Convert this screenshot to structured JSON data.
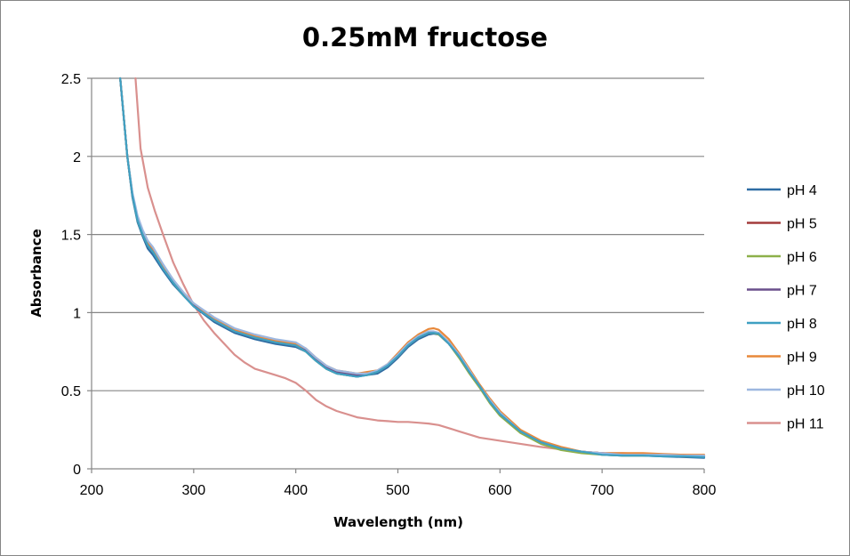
{
  "chart_data": {
    "type": "line",
    "title": "0.25mM fructose",
    "xlabel": "Wavelength (nm)",
    "ylabel": "Absorbance",
    "xlim": [
      200,
      800
    ],
    "ylim": [
      0,
      2.5
    ],
    "xticks": [
      200,
      300,
      400,
      500,
      600,
      700,
      800
    ],
    "yticks": [
      0,
      0.5,
      1,
      1.5,
      2,
      2.5
    ],
    "ytick_labels": [
      "0",
      "0.5",
      "1",
      "1.5",
      "2",
      "2.5"
    ],
    "grid": "horizontal",
    "legend_position": "right",
    "series": [
      {
        "name": "pH 4",
        "color": "#2E6CA4",
        "x": [
          228,
          235,
          240,
          245,
          250,
          255,
          260,
          270,
          280,
          290,
          300,
          320,
          340,
          360,
          380,
          400,
          410,
          420,
          430,
          440,
          450,
          460,
          470,
          480,
          490,
          500,
          510,
          520,
          530,
          535,
          540,
          550,
          560,
          570,
          580,
          590,
          600,
          620,
          640,
          660,
          680,
          700,
          720,
          740,
          760,
          780,
          800
        ],
        "y": [
          2.5,
          2.0,
          1.74,
          1.58,
          1.49,
          1.41,
          1.37,
          1.27,
          1.18,
          1.11,
          1.04,
          0.94,
          0.87,
          0.83,
          0.8,
          0.78,
          0.75,
          0.69,
          0.64,
          0.61,
          0.6,
          0.59,
          0.6,
          0.61,
          0.65,
          0.71,
          0.78,
          0.83,
          0.86,
          0.865,
          0.86,
          0.8,
          0.72,
          0.62,
          0.53,
          0.43,
          0.35,
          0.24,
          0.17,
          0.13,
          0.11,
          0.09,
          0.085,
          0.085,
          0.08,
          0.075,
          0.07
        ]
      },
      {
        "name": "pH 5",
        "color": "#A33B3B",
        "x": [
          228,
          235,
          240,
          245,
          250,
          255,
          260,
          270,
          280,
          290,
          300,
          320,
          340,
          360,
          380,
          400,
          410,
          420,
          430,
          440,
          450,
          460,
          470,
          480,
          490,
          500,
          510,
          520,
          530,
          535,
          540,
          550,
          560,
          570,
          580,
          590,
          600,
          620,
          640,
          660,
          680,
          700,
          720,
          740,
          760,
          780,
          800
        ],
        "y": [
          2.5,
          2.0,
          1.76,
          1.6,
          1.51,
          1.44,
          1.4,
          1.3,
          1.2,
          1.12,
          1.05,
          0.96,
          0.89,
          0.85,
          0.82,
          0.8,
          0.76,
          0.7,
          0.65,
          0.62,
          0.61,
          0.6,
          0.61,
          0.62,
          0.66,
          0.72,
          0.79,
          0.84,
          0.87,
          0.875,
          0.87,
          0.81,
          0.72,
          0.62,
          0.53,
          0.44,
          0.36,
          0.24,
          0.17,
          0.13,
          0.11,
          0.1,
          0.09,
          0.09,
          0.085,
          0.08,
          0.08
        ]
      },
      {
        "name": "pH 6",
        "color": "#8DB04A",
        "x": [
          228,
          235,
          240,
          245,
          250,
          255,
          260,
          270,
          280,
          290,
          300,
          320,
          340,
          360,
          380,
          400,
          410,
          420,
          430,
          440,
          450,
          460,
          470,
          480,
          490,
          500,
          510,
          520,
          530,
          535,
          540,
          550,
          560,
          570,
          580,
          590,
          600,
          620,
          640,
          660,
          680,
          700,
          720,
          740,
          760,
          780,
          800
        ],
        "y": [
          2.5,
          2.0,
          1.75,
          1.59,
          1.5,
          1.43,
          1.39,
          1.29,
          1.19,
          1.11,
          1.05,
          0.95,
          0.88,
          0.84,
          0.81,
          0.79,
          0.75,
          0.69,
          0.64,
          0.61,
          0.6,
          0.6,
          0.6,
          0.62,
          0.66,
          0.72,
          0.79,
          0.84,
          0.87,
          0.87,
          0.86,
          0.8,
          0.71,
          0.61,
          0.52,
          0.42,
          0.34,
          0.23,
          0.16,
          0.12,
          0.1,
          0.09,
          0.085,
          0.085,
          0.085,
          0.08,
          0.08
        ]
      },
      {
        "name": "pH 7",
        "color": "#6A4F8C",
        "x": [
          228,
          235,
          240,
          245,
          250,
          255,
          260,
          270,
          280,
          290,
          300,
          320,
          340,
          360,
          380,
          400,
          410,
          420,
          430,
          440,
          450,
          460,
          470,
          480,
          490,
          500,
          510,
          520,
          530,
          535,
          540,
          550,
          560,
          570,
          580,
          590,
          600,
          620,
          640,
          660,
          680,
          700,
          720,
          740,
          760,
          780,
          800
        ],
        "y": [
          2.5,
          2.0,
          1.75,
          1.6,
          1.51,
          1.44,
          1.4,
          1.29,
          1.2,
          1.12,
          1.05,
          0.95,
          0.88,
          0.84,
          0.81,
          0.79,
          0.76,
          0.7,
          0.65,
          0.62,
          0.61,
          0.6,
          0.61,
          0.62,
          0.66,
          0.72,
          0.79,
          0.84,
          0.87,
          0.875,
          0.865,
          0.8,
          0.72,
          0.62,
          0.53,
          0.43,
          0.35,
          0.24,
          0.17,
          0.13,
          0.11,
          0.1,
          0.09,
          0.09,
          0.085,
          0.08,
          0.08
        ]
      },
      {
        "name": "pH 8",
        "color": "#3FA0C2",
        "x": [
          228,
          235,
          240,
          245,
          250,
          255,
          260,
          270,
          280,
          290,
          300,
          320,
          340,
          360,
          380,
          400,
          410,
          420,
          430,
          440,
          450,
          460,
          470,
          480,
          490,
          500,
          510,
          520,
          530,
          535,
          540,
          550,
          560,
          570,
          580,
          590,
          600,
          620,
          640,
          660,
          680,
          700,
          720,
          740,
          760,
          780,
          800
        ],
        "y": [
          2.5,
          2.0,
          1.75,
          1.59,
          1.5,
          1.43,
          1.39,
          1.28,
          1.19,
          1.11,
          1.04,
          0.95,
          0.88,
          0.84,
          0.81,
          0.79,
          0.75,
          0.69,
          0.64,
          0.61,
          0.6,
          0.59,
          0.6,
          0.62,
          0.66,
          0.72,
          0.79,
          0.84,
          0.87,
          0.87,
          0.865,
          0.8,
          0.72,
          0.62,
          0.53,
          0.43,
          0.35,
          0.24,
          0.17,
          0.13,
          0.11,
          0.09,
          0.085,
          0.085,
          0.08,
          0.08,
          0.075
        ]
      },
      {
        "name": "pH 9",
        "color": "#E8883A",
        "x": [
          228,
          235,
          240,
          245,
          250,
          255,
          260,
          270,
          280,
          290,
          300,
          320,
          340,
          360,
          380,
          400,
          410,
          420,
          430,
          440,
          450,
          460,
          470,
          480,
          490,
          500,
          510,
          520,
          530,
          535,
          540,
          550,
          560,
          570,
          580,
          590,
          600,
          620,
          640,
          660,
          680,
          700,
          720,
          740,
          760,
          780,
          800
        ],
        "y": [
          2.5,
          2.0,
          1.76,
          1.61,
          1.52,
          1.45,
          1.41,
          1.3,
          1.21,
          1.12,
          1.06,
          0.96,
          0.89,
          0.85,
          0.82,
          0.8,
          0.77,
          0.71,
          0.66,
          0.63,
          0.62,
          0.61,
          0.62,
          0.63,
          0.67,
          0.74,
          0.81,
          0.86,
          0.895,
          0.9,
          0.89,
          0.83,
          0.74,
          0.64,
          0.54,
          0.45,
          0.37,
          0.25,
          0.18,
          0.14,
          0.11,
          0.1,
          0.1,
          0.1,
          0.095,
          0.09,
          0.09
        ]
      },
      {
        "name": "pH 10",
        "color": "#9DB7E0",
        "x": [
          228,
          235,
          240,
          245,
          250,
          255,
          260,
          270,
          280,
          290,
          300,
          320,
          340,
          360,
          380,
          400,
          410,
          420,
          430,
          440,
          450,
          460,
          470,
          480,
          490,
          500,
          510,
          520,
          530,
          535,
          540,
          550,
          560,
          570,
          580,
          590,
          600,
          620,
          640,
          660,
          680,
          700,
          720,
          740,
          760,
          780,
          800
        ],
        "y": [
          2.5,
          2.0,
          1.77,
          1.62,
          1.53,
          1.46,
          1.42,
          1.31,
          1.21,
          1.13,
          1.06,
          0.97,
          0.9,
          0.86,
          0.83,
          0.81,
          0.77,
          0.71,
          0.66,
          0.63,
          0.62,
          0.61,
          0.61,
          0.63,
          0.67,
          0.73,
          0.8,
          0.85,
          0.88,
          0.88,
          0.87,
          0.81,
          0.73,
          0.63,
          0.53,
          0.44,
          0.36,
          0.24,
          0.17,
          0.13,
          0.11,
          0.1,
          0.09,
          0.09,
          0.09,
          0.085,
          0.085
        ]
      },
      {
        "name": "pH 11",
        "color": "#D9908E",
        "x": [
          243,
          248,
          255,
          262,
          270,
          280,
          290,
          300,
          310,
          320,
          330,
          340,
          350,
          360,
          370,
          380,
          390,
          400,
          410,
          420,
          430,
          440,
          450,
          460,
          470,
          480,
          490,
          500,
          510,
          520,
          530,
          540,
          550,
          560,
          570,
          580,
          600,
          620,
          640,
          660,
          680,
          700,
          720,
          740,
          760,
          780,
          800
        ],
        "y": [
          2.5,
          2.05,
          1.8,
          1.65,
          1.5,
          1.32,
          1.18,
          1.05,
          0.95,
          0.87,
          0.8,
          0.73,
          0.68,
          0.64,
          0.62,
          0.6,
          0.58,
          0.55,
          0.5,
          0.44,
          0.4,
          0.37,
          0.35,
          0.33,
          0.32,
          0.31,
          0.305,
          0.3,
          0.3,
          0.295,
          0.29,
          0.28,
          0.26,
          0.24,
          0.22,
          0.2,
          0.18,
          0.16,
          0.14,
          0.125,
          0.11,
          0.1,
          0.1,
          0.095,
          0.09,
          0.09,
          0.085
        ]
      }
    ]
  }
}
